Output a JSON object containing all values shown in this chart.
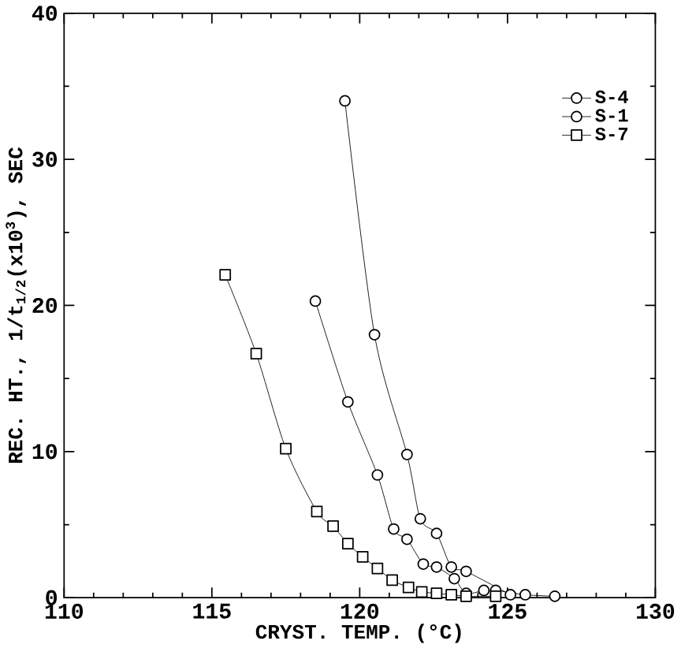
{
  "chart_data": {
    "type": "line",
    "xlabel": "CRYST. TEMP. (°C)",
    "ylabel": "REC. HT., 1/t$_{1/2}$(x10$^{3}$), SEC",
    "xlim": [
      110,
      130
    ],
    "xticks": [
      110,
      115,
      120,
      125,
      130
    ],
    "ylim": [
      0,
      40
    ],
    "yticks": [
      0,
      10,
      20,
      30,
      40
    ],
    "legend": "top right",
    "grid": false,
    "series": [
      {
        "name": "S-4",
        "color": "#000000",
        "marker": "circle",
        "x": [
          119.5,
          120.5,
          121.6,
          122.05,
          122.6,
          123.1,
          123.6,
          125.1
        ],
        "values": [
          34,
          18,
          9.8,
          5.4,
          4.4,
          2.1,
          1.8,
          0.2
        ]
      },
      {
        "name": "S-1",
        "color": "#000000",
        "marker": "circle",
        "x": [
          118.5,
          119.6,
          120.6,
          121.15,
          121.6,
          122.15,
          122.6,
          123.2,
          123.6,
          124.2,
          124.6,
          125.6,
          126.6
        ],
        "values": [
          20.3,
          13.4,
          8.4,
          4.7,
          4.0,
          2.3,
          2.1,
          1.3,
          0.3,
          0.5,
          0.5,
          0.2,
          0.1
        ]
      },
      {
        "name": "S-7",
        "color": "#000000",
        "marker": "square",
        "x": [
          115.45,
          116.5,
          117.5,
          118.55,
          119.1,
          119.6,
          120.1,
          120.6,
          121.1,
          121.65,
          122.1,
          122.6,
          123.1,
          123.6,
          124.6
        ],
        "values": [
          22.1,
          16.7,
          10.2,
          5.9,
          4.9,
          3.7,
          2.8,
          2.0,
          1.2,
          0.7,
          0.4,
          0.3,
          0.2,
          0.1,
          0.1
        ]
      }
    ]
  }
}
